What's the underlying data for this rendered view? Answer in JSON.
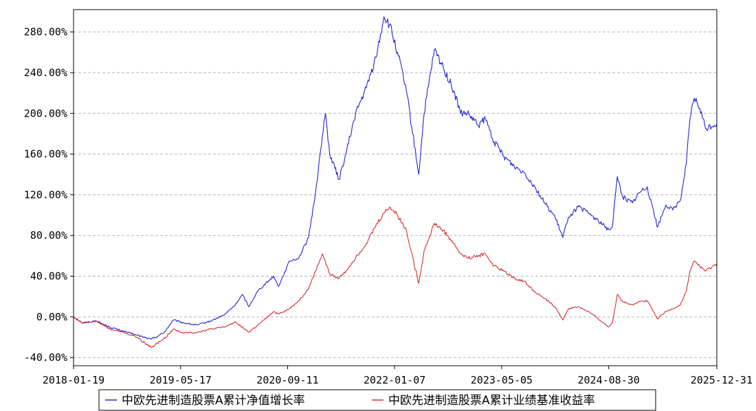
{
  "chart_data": {
    "type": "line",
    "title": "",
    "xlabel": "",
    "ylabel": "",
    "x_ticks": [
      "2018-01-19",
      "2019-05-17",
      "2020-09-11",
      "2022-01-07",
      "2023-05-05",
      "2024-08-30",
      "2025-12-31"
    ],
    "y_ticks": [
      "-40.00%",
      "0.00%",
      "40.00%",
      "80.00%",
      "120.00%",
      "160.00%",
      "200.00%",
      "240.00%",
      "280.00%"
    ],
    "xlim": [
      "2018-01-19",
      "2025-12-31"
    ],
    "ylim": [
      -48,
      302
    ],
    "grid": true,
    "legend_position": "bottom-center",
    "series": [
      {
        "name": "中欧先进制造股票A累计净值增长率",
        "color": "#2323d6",
        "points": [
          [
            "2018-01-19",
            0
          ],
          [
            "2018-03-01",
            -6
          ],
          [
            "2018-05-01",
            -4
          ],
          [
            "2018-07-01",
            -10
          ],
          [
            "2018-09-01",
            -14
          ],
          [
            "2018-11-01",
            -18
          ],
          [
            "2019-01-04",
            -22
          ],
          [
            "2019-03-01",
            -16
          ],
          [
            "2019-04-15",
            -3
          ],
          [
            "2019-06-01",
            -6
          ],
          [
            "2019-08-01",
            -8
          ],
          [
            "2019-10-01",
            -4
          ],
          [
            "2019-12-01",
            2
          ],
          [
            "2020-01-20",
            12
          ],
          [
            "2020-02-20",
            22
          ],
          [
            "2020-03-20",
            10
          ],
          [
            "2020-05-01",
            26
          ],
          [
            "2020-07-10",
            40
          ],
          [
            "2020-08-01",
            30
          ],
          [
            "2020-09-20",
            55
          ],
          [
            "2020-11-01",
            58
          ],
          [
            "2020-12-15",
            78
          ],
          [
            "2021-01-15",
            122
          ],
          [
            "2021-02-15",
            178
          ],
          [
            "2021-03-01",
            200
          ],
          [
            "2021-03-20",
            160
          ],
          [
            "2021-05-01",
            135
          ],
          [
            "2021-06-01",
            160
          ],
          [
            "2021-07-15",
            200
          ],
          [
            "2021-09-01",
            225
          ],
          [
            "2021-10-15",
            255
          ],
          [
            "2021-11-20",
            295
          ],
          [
            "2021-12-15",
            287
          ],
          [
            "2022-01-20",
            260
          ],
          [
            "2022-03-01",
            222
          ],
          [
            "2022-04-26",
            140
          ],
          [
            "2022-05-20",
            200
          ],
          [
            "2022-07-05",
            262
          ],
          [
            "2022-08-15",
            245
          ],
          [
            "2022-10-01",
            222
          ],
          [
            "2022-11-01",
            200
          ],
          [
            "2022-12-01",
            200
          ],
          [
            "2023-01-20",
            188
          ],
          [
            "2023-02-20",
            195
          ],
          [
            "2023-04-01",
            172
          ],
          [
            "2023-05-15",
            158
          ],
          [
            "2023-07-01",
            148
          ],
          [
            "2023-08-15",
            142
          ],
          [
            "2023-10-01",
            128
          ],
          [
            "2023-11-15",
            112
          ],
          [
            "2024-01-01",
            98
          ],
          [
            "2024-02-05",
            78
          ],
          [
            "2024-03-01",
            98
          ],
          [
            "2024-04-15",
            108
          ],
          [
            "2024-06-01",
            102
          ],
          [
            "2024-07-15",
            94
          ],
          [
            "2024-08-30",
            86
          ],
          [
            "2024-09-15",
            88
          ],
          [
            "2024-10-08",
            138
          ],
          [
            "2024-11-01",
            118
          ],
          [
            "2024-12-15",
            112
          ],
          [
            "2025-01-15",
            122
          ],
          [
            "2025-02-20",
            128
          ],
          [
            "2025-03-20",
            105
          ],
          [
            "2025-04-07",
            88
          ],
          [
            "2025-05-15",
            110
          ],
          [
            "2025-06-15",
            105
          ],
          [
            "2025-07-20",
            115
          ],
          [
            "2025-08-15",
            150
          ],
          [
            "2025-09-01",
            195
          ],
          [
            "2025-09-20",
            215
          ],
          [
            "2025-10-15",
            205
          ],
          [
            "2025-11-10",
            185
          ],
          [
            "2025-12-31",
            190
          ]
        ]
      },
      {
        "name": "中欧先进制造股票A累计业绩基准收益率",
        "color": "#d92b2b",
        "points": [
          [
            "2018-01-19",
            0
          ],
          [
            "2018-03-01",
            -6
          ],
          [
            "2018-05-01",
            -4
          ],
          [
            "2018-07-01",
            -12
          ],
          [
            "2018-09-01",
            -15
          ],
          [
            "2018-11-01",
            -20
          ],
          [
            "2019-01-04",
            -30
          ],
          [
            "2019-03-01",
            -22
          ],
          [
            "2019-04-15",
            -12
          ],
          [
            "2019-06-01",
            -16
          ],
          [
            "2019-08-01",
            -15
          ],
          [
            "2019-10-01",
            -12
          ],
          [
            "2019-12-01",
            -10
          ],
          [
            "2020-01-20",
            -5
          ],
          [
            "2020-03-20",
            -15
          ],
          [
            "2020-05-01",
            -8
          ],
          [
            "2020-07-10",
            5
          ],
          [
            "2020-08-01",
            3
          ],
          [
            "2020-09-20",
            8
          ],
          [
            "2020-11-01",
            16
          ],
          [
            "2020-12-15",
            28
          ],
          [
            "2021-01-15",
            45
          ],
          [
            "2021-02-15",
            62
          ],
          [
            "2021-03-20",
            42
          ],
          [
            "2021-05-01",
            38
          ],
          [
            "2021-06-01",
            45
          ],
          [
            "2021-07-15",
            58
          ],
          [
            "2021-09-01",
            72
          ],
          [
            "2021-10-15",
            90
          ],
          [
            "2021-11-20",
            102
          ],
          [
            "2021-12-15",
            108
          ],
          [
            "2022-01-20",
            100
          ],
          [
            "2022-03-01",
            85
          ],
          [
            "2022-04-26",
            33
          ],
          [
            "2022-05-20",
            65
          ],
          [
            "2022-07-05",
            92
          ],
          [
            "2022-08-15",
            85
          ],
          [
            "2022-10-01",
            72
          ],
          [
            "2022-11-01",
            62
          ],
          [
            "2022-12-01",
            58
          ],
          [
            "2023-01-20",
            60
          ],
          [
            "2023-02-20",
            62
          ],
          [
            "2023-04-01",
            50
          ],
          [
            "2023-05-15",
            45
          ],
          [
            "2023-07-01",
            38
          ],
          [
            "2023-08-15",
            35
          ],
          [
            "2023-10-01",
            25
          ],
          [
            "2023-11-15",
            18
          ],
          [
            "2024-01-01",
            10
          ],
          [
            "2024-02-05",
            -3
          ],
          [
            "2024-03-01",
            8
          ],
          [
            "2024-04-15",
            10
          ],
          [
            "2024-06-01",
            5
          ],
          [
            "2024-07-15",
            -2
          ],
          [
            "2024-08-30",
            -10
          ],
          [
            "2024-09-15",
            -6
          ],
          [
            "2024-10-08",
            22
          ],
          [
            "2024-11-01",
            15
          ],
          [
            "2024-12-15",
            12
          ],
          [
            "2025-01-15",
            15
          ],
          [
            "2025-02-20",
            16
          ],
          [
            "2025-03-20",
            5
          ],
          [
            "2025-04-07",
            -2
          ],
          [
            "2025-05-15",
            5
          ],
          [
            "2025-06-15",
            8
          ],
          [
            "2025-07-20",
            12
          ],
          [
            "2025-08-15",
            25
          ],
          [
            "2025-09-01",
            45
          ],
          [
            "2025-09-20",
            55
          ],
          [
            "2025-10-15",
            50
          ],
          [
            "2025-11-10",
            45
          ],
          [
            "2025-12-31",
            52
          ]
        ]
      }
    ]
  }
}
